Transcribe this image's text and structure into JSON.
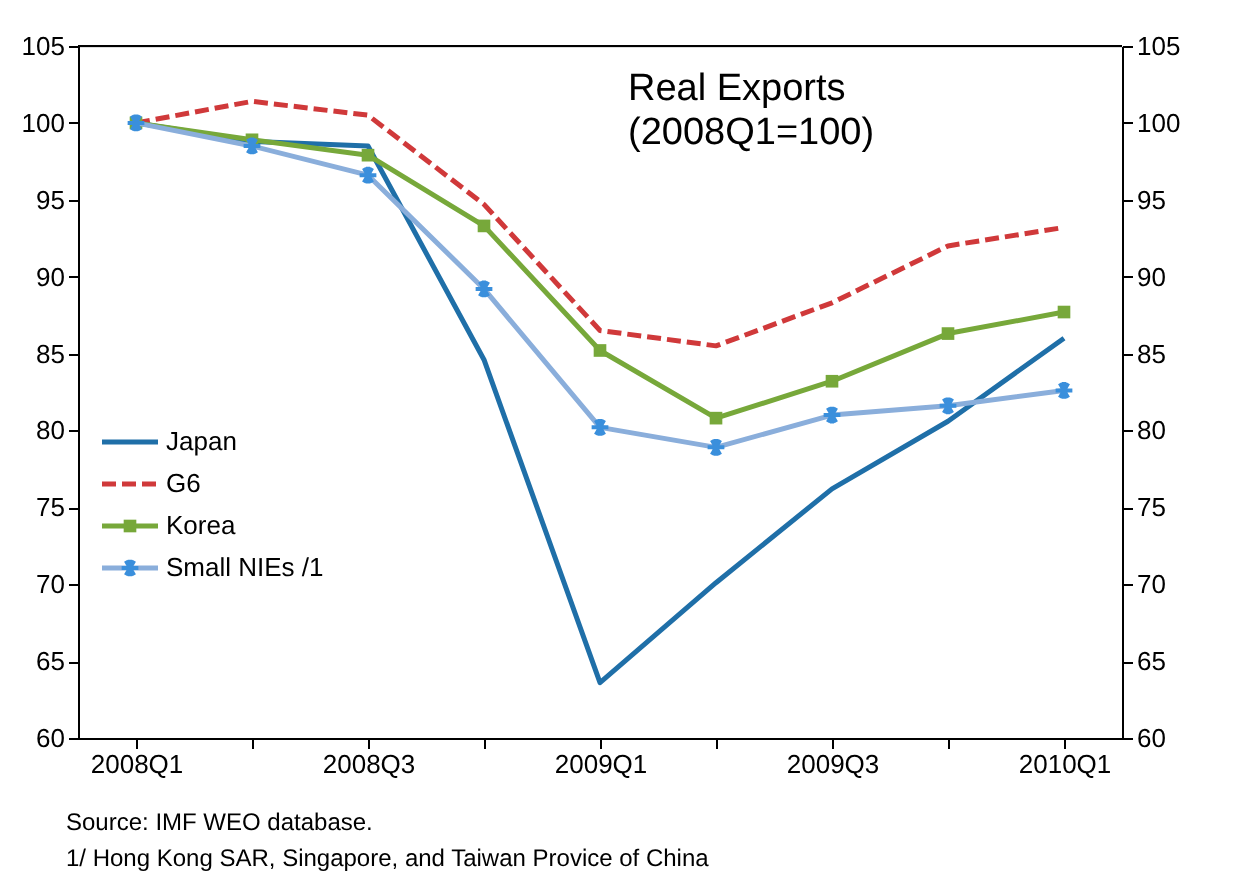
{
  "chart_data": {
    "type": "line",
    "title": "Real Exports\n(2008Q1=100)",
    "categories": [
      "2008Q1",
      null,
      "2008Q3",
      null,
      "2009Q1",
      null,
      "2009Q3",
      null,
      "2010Q1"
    ],
    "series": [
      {
        "name": "Japan",
        "color": "#1f6fa8",
        "marker": "none",
        "line_style": "solid",
        "values": [
          100,
          98.8,
          98.5,
          84.6,
          63.6,
          70.1,
          76.2,
          80.6,
          86.0
        ]
      },
      {
        "name": "G6",
        "color": "#d0393a",
        "marker": "none",
        "line_style": "dashed",
        "values": [
          100,
          101.4,
          100.5,
          94.7,
          86.5,
          85.5,
          88.3,
          92.0,
          93.2
        ]
      },
      {
        "name": "Korea",
        "color": "#77a83a",
        "marker": "square",
        "line_style": "solid",
        "values": [
          100,
          98.9,
          97.9,
          93.3,
          85.2,
          80.8,
          83.2,
          86.3,
          87.7
        ]
      },
      {
        "name": "Small NIEs /1",
        "color": "#8aaedb",
        "marker": "cross",
        "line_style": "solid",
        "values": [
          100,
          98.5,
          96.6,
          89.2,
          80.2,
          78.9,
          81.0,
          81.6,
          82.6
        ]
      }
    ],
    "ylim": [
      60,
      105
    ],
    "yticks": [
      60,
      65,
      70,
      75,
      80,
      85,
      90,
      95,
      100,
      105
    ],
    "y2lim": [
      60,
      105
    ],
    "y2ticks": [
      60,
      65,
      70,
      75,
      80,
      85,
      90,
      95,
      100,
      105
    ],
    "grid": false,
    "legend": "left",
    "annotations": [
      "Source: IMF WEO database.",
      "1/ Hong Kong SAR, Singapore, and Taiwan Provice of China"
    ]
  }
}
